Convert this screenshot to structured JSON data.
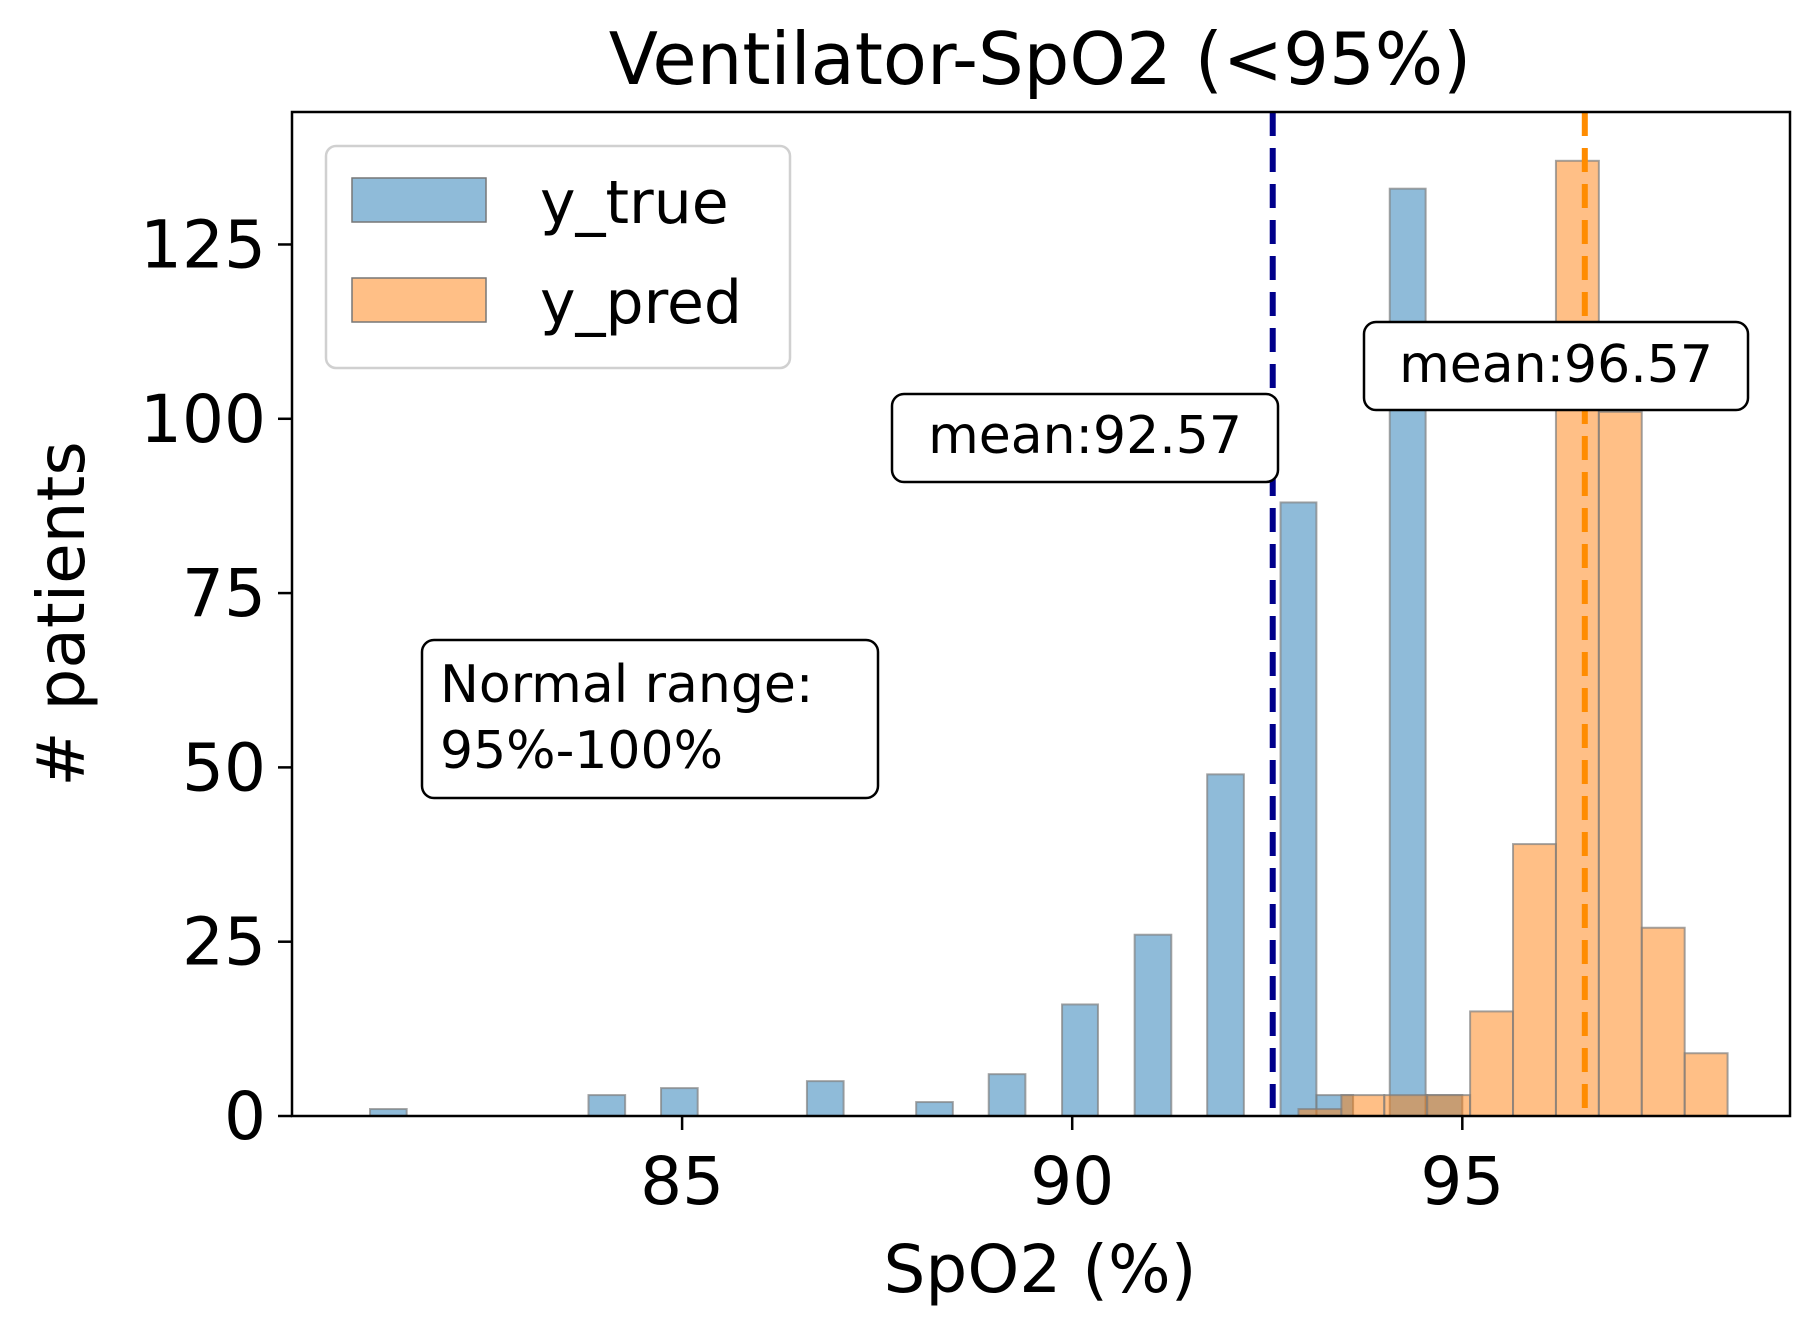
{
  "chart_data": {
    "type": "histogram",
    "title": "Ventilator-SpO2 (<95%)",
    "xlabel": "SpO2 (%)",
    "ylabel": "# patients",
    "xlim": [
      80.0,
      99.2
    ],
    "ylim": [
      0,
      144
    ],
    "xticks": [
      85,
      90,
      95
    ],
    "yticks": [
      0,
      25,
      50,
      75,
      100,
      125
    ],
    "legend": {
      "location": "upper-left",
      "entries": [
        "y_true",
        "y_pred"
      ]
    },
    "series": [
      {
        "name": "y_true",
        "color": "#1f77b4",
        "bars": [
          {
            "x0": 81.0,
            "x1": 81.47,
            "value": 1
          },
          {
            "x0": 83.8,
            "x1": 84.27,
            "value": 3
          },
          {
            "x0": 84.73,
            "x1": 85.2,
            "value": 4
          },
          {
            "x0": 86.6,
            "x1": 87.07,
            "value": 5
          },
          {
            "x0": 88.0,
            "x1": 88.47,
            "value": 2
          },
          {
            "x0": 88.93,
            "x1": 89.4,
            "value": 6
          },
          {
            "x0": 89.87,
            "x1": 90.33,
            "value": 16
          },
          {
            "x0": 90.8,
            "x1": 91.27,
            "value": 26
          },
          {
            "x0": 91.73,
            "x1": 92.2,
            "value": 49
          },
          {
            "x0": 92.67,
            "x1": 93.13,
            "value": 88
          },
          {
            "x0": 93.13,
            "x1": 93.6,
            "value": 3
          },
          {
            "x0": 94.07,
            "x1": 94.53,
            "value": 133
          },
          {
            "x0": 94.53,
            "x1": 95.0,
            "value": 3
          }
        ]
      },
      {
        "name": "y_pred",
        "color": "#ff7f0e",
        "bars": [
          {
            "x0": 92.9,
            "x1": 93.45,
            "value": 1
          },
          {
            "x0": 93.45,
            "x1": 94.0,
            "value": 3
          },
          {
            "x0": 94.0,
            "x1": 94.55,
            "value": 3
          },
          {
            "x0": 94.55,
            "x1": 95.1,
            "value": 3
          },
          {
            "x0": 95.1,
            "x1": 95.65,
            "value": 15
          },
          {
            "x0": 95.65,
            "x1": 96.2,
            "value": 39
          },
          {
            "x0": 96.2,
            "x1": 96.75,
            "value": 137
          },
          {
            "x0": 96.75,
            "x1": 97.3,
            "value": 101
          },
          {
            "x0": 97.3,
            "x1": 97.85,
            "value": 27
          },
          {
            "x0": 97.85,
            "x1": 98.4,
            "value": 9
          }
        ]
      }
    ],
    "mean_lines": [
      {
        "series": "y_true",
        "x": 92.57,
        "color": "#00008b",
        "label": "mean:92.57"
      },
      {
        "series": "y_pred",
        "x": 96.57,
        "color": "#ff8c00",
        "label": "mean:96.57"
      }
    ],
    "annotations": [
      {
        "lines": [
          "Normal range:",
          "95%-100%"
        ]
      }
    ]
  }
}
